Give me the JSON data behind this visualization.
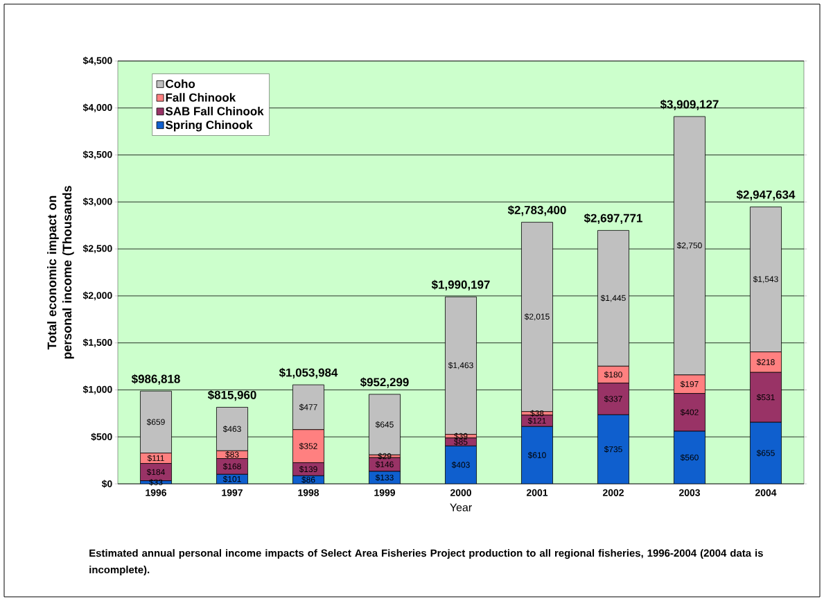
{
  "chart_data": {
    "type": "bar",
    "stacked": true,
    "ylabel": "Total economic impact on personal income (Thousands",
    "xlabel": "Year",
    "categories": [
      "1996",
      "1997",
      "1998",
      "1999",
      "2000",
      "2001",
      "2002",
      "2003",
      "2004"
    ],
    "series": [
      {
        "name": "Spring Chinook",
        "color": "#0f5fce",
        "values": [
          33,
          101,
          86,
          133,
          403,
          610,
          735,
          560,
          655
        ],
        "value_labels": [
          "$33",
          "$101",
          "$86",
          "$133",
          "$403",
          "$610",
          "$735",
          "$560",
          "$655"
        ]
      },
      {
        "name": "SAB Fall Chinook",
        "color": "#993366",
        "values": [
          184,
          168,
          139,
          146,
          85,
          121,
          337,
          402,
          531
        ],
        "value_labels": [
          "$184",
          "$168",
          "$139",
          "$146",
          "$85",
          "$121",
          "$337",
          "$402",
          "$531"
        ]
      },
      {
        "name": "Fall Chinook",
        "color": "#ff8080",
        "values": [
          111,
          83,
          352,
          29,
          39,
          38,
          180,
          197,
          218
        ],
        "value_labels": [
          "$111",
          "$83",
          "$352",
          "$29",
          "$39",
          "$38",
          "$180",
          "$197",
          "$218"
        ]
      },
      {
        "name": "Coho",
        "color": "#c0c0c0",
        "values": [
          659,
          463,
          477,
          645,
          1463,
          2015,
          1445,
          2750,
          1543
        ],
        "value_labels": [
          "$659",
          "$463",
          "$477",
          "$645",
          "$1,463",
          "$2,015",
          "$1,445",
          "$2,750",
          "$1,543"
        ]
      }
    ],
    "ylim": [
      0,
      4500
    ],
    "yticks": [
      {
        "value": 0,
        "label": "$0"
      },
      {
        "value": 500,
        "label": "$500"
      },
      {
        "value": 1000,
        "label": "$1,000"
      },
      {
        "value": 1500,
        "label": "$1,500"
      },
      {
        "value": 2000,
        "label": "$2,000"
      },
      {
        "value": 2500,
        "label": "$2,500"
      },
      {
        "value": 3000,
        "label": "$3,000"
      },
      {
        "value": 3500,
        "label": "$3,500"
      },
      {
        "value": 4000,
        "label": "$4,000"
      },
      {
        "value": 4500,
        "label": "$4,500"
      }
    ],
    "grid": "y",
    "legend": "top left",
    "annotations": [
      "Estimated annual personal income impacts of Select Area Fisheries Project production to all regional fisheries, 1996-2004 (2004 data is incomplete).",
      {
        "text": "$986,818",
        "x": "1996",
        "y": 986.818
      },
      {
        "text": "$815,960",
        "x": "1997",
        "y": 815.96
      },
      {
        "text": "$1,053,984",
        "x": "1998",
        "y": 1053.984
      },
      {
        "text": "$952,299",
        "x": "1999",
        "y": 952.299
      },
      {
        "text": "$1,990,197",
        "x": "2000",
        "y": 1990.197
      },
      {
        "text": "$2,783,400",
        "x": "2001",
        "y": 2783.4
      },
      {
        "text": "$2,697,771",
        "x": "2002",
        "y": 2697.771
      },
      {
        "text": "$3,909,127",
        "x": "2003",
        "y": 3909.127
      },
      {
        "text": "$2,947,634",
        "x": "2004",
        "y": 2947.634
      }
    ]
  }
}
